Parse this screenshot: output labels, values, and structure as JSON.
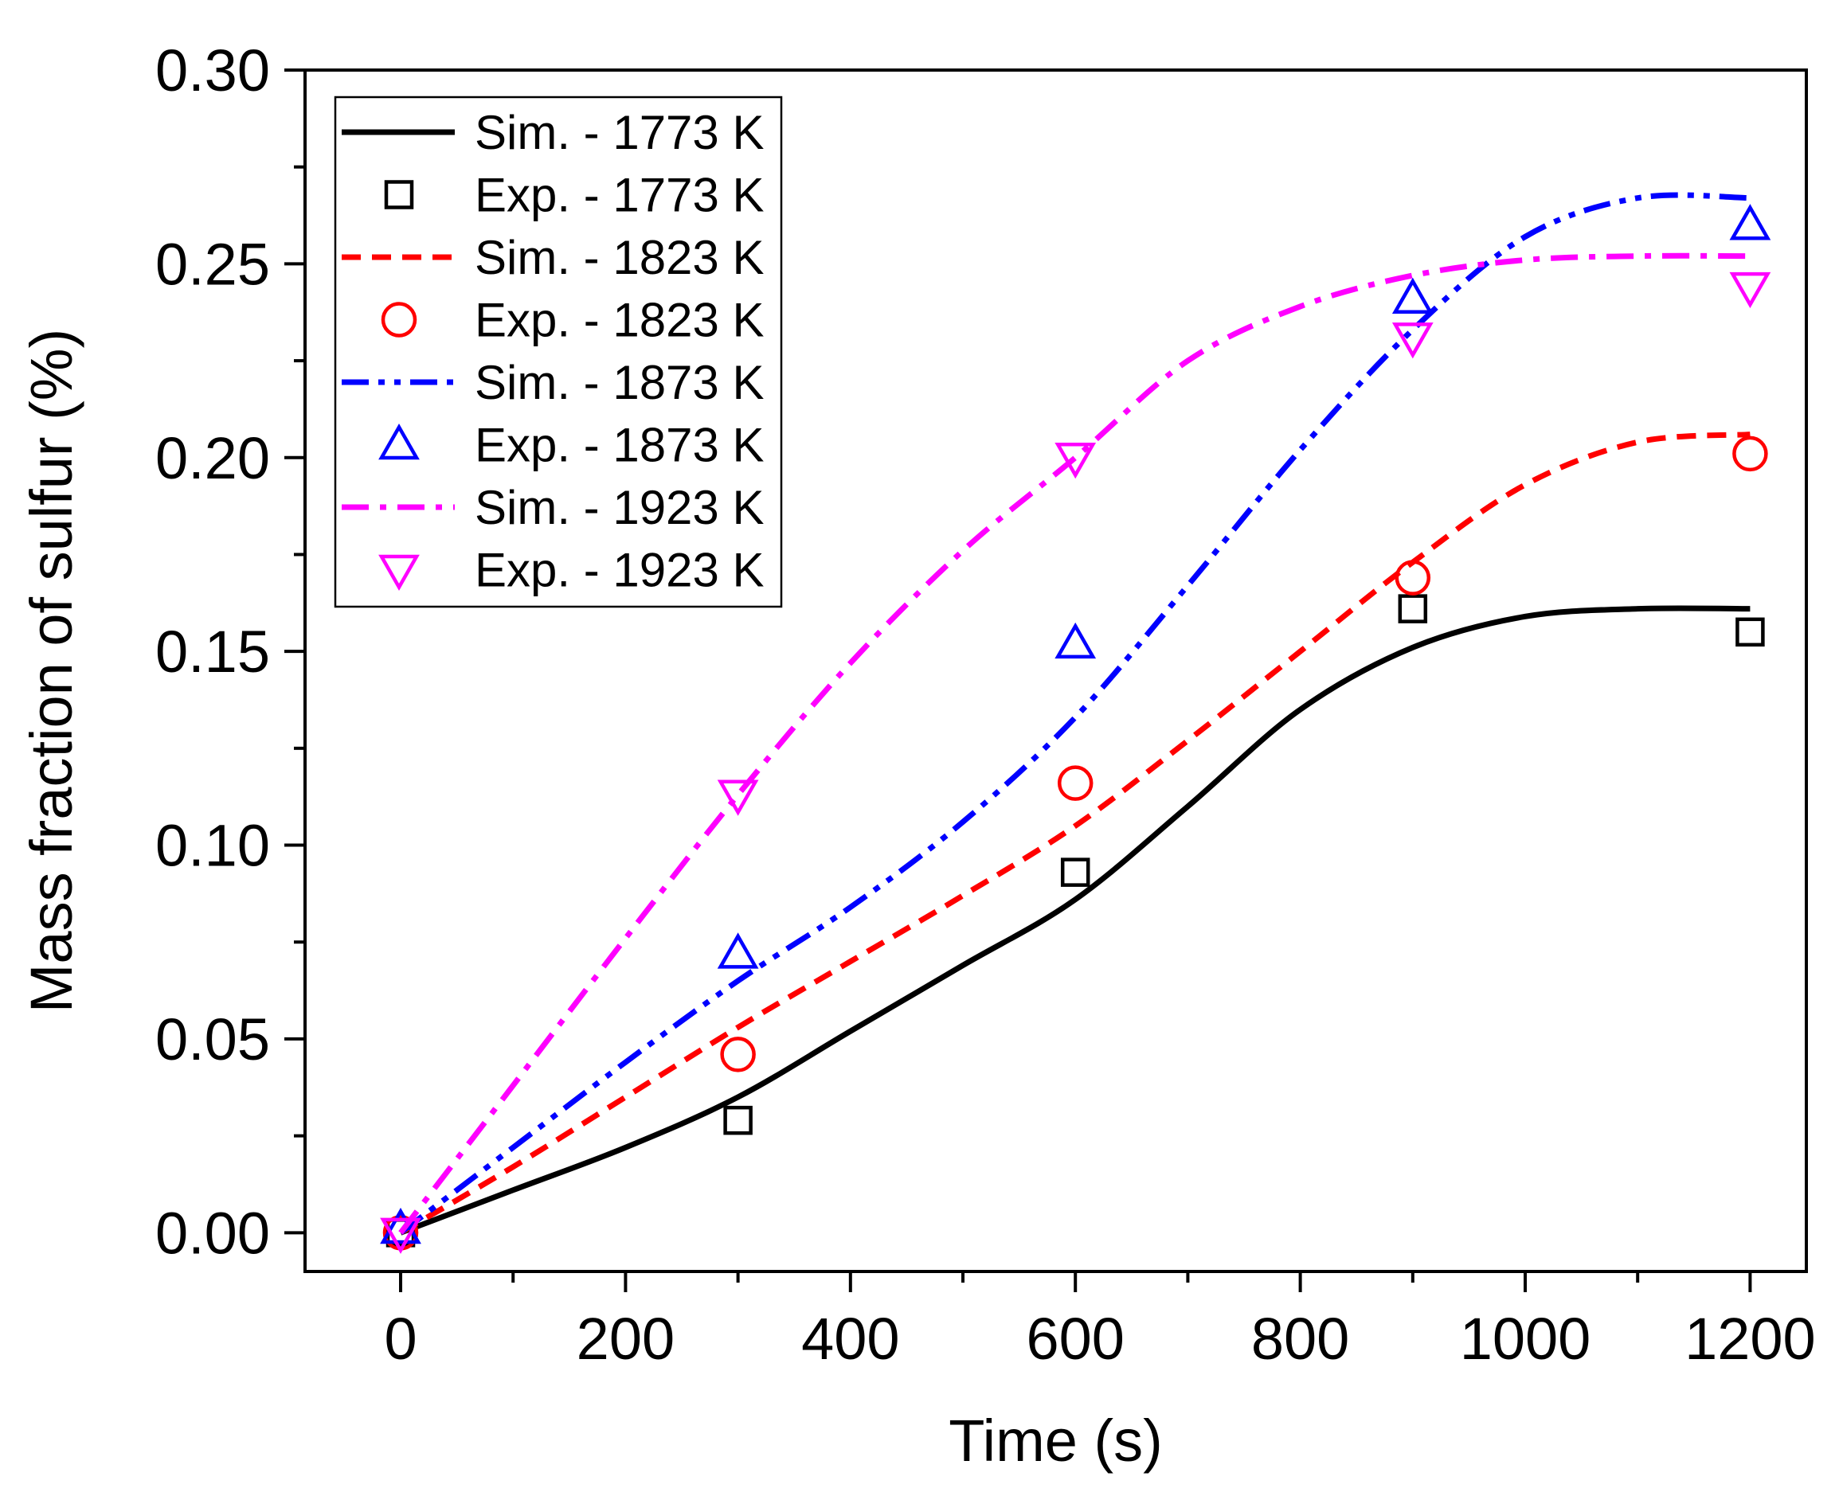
{
  "chart_data": {
    "type": "line",
    "title": "",
    "xlabel": "Time (s)",
    "ylabel": "Mass fraction of sulfur (%)",
    "xlim": [
      -85,
      1250
    ],
    "ylim": [
      -0.01,
      0.3
    ],
    "xticks": [
      0,
      200,
      400,
      600,
      800,
      1000,
      1200
    ],
    "xtick_labels": [
      "0",
      "200",
      "400",
      "600",
      "800",
      "1000",
      "1200"
    ],
    "yticks": [
      0.0,
      0.05,
      0.1,
      0.15,
      0.2,
      0.25,
      0.3
    ],
    "ytick_labels": [
      "0.00",
      "0.05",
      "0.10",
      "0.15",
      "0.20",
      "0.25",
      "0.30"
    ],
    "legend_position": "top-left",
    "grid": false,
    "series": [
      {
        "name": "Sim. - 1773 K",
        "kind": "line",
        "style": "solid",
        "color": "#000000",
        "x": [
          0,
          100,
          200,
          300,
          400,
          500,
          600,
          700,
          800,
          900,
          1000,
          1100,
          1200
        ],
        "y": [
          0.0,
          0.011,
          0.022,
          0.035,
          0.052,
          0.069,
          0.086,
          0.11,
          0.135,
          0.151,
          0.159,
          0.161,
          0.161
        ]
      },
      {
        "name": "Exp. - 1773 K",
        "kind": "marker",
        "marker": "square",
        "color": "#000000",
        "x": [
          0,
          300,
          600,
          900,
          1200
        ],
        "y": [
          0.0,
          0.029,
          0.093,
          0.161,
          0.155
        ]
      },
      {
        "name": "Sim. - 1823 K",
        "kind": "line",
        "style": "dash",
        "color": "#ff0000",
        "x": [
          0,
          100,
          200,
          300,
          400,
          500,
          600,
          700,
          800,
          900,
          1000,
          1100,
          1200
        ],
        "y": [
          0.0,
          0.017,
          0.035,
          0.053,
          0.07,
          0.087,
          0.105,
          0.127,
          0.15,
          0.173,
          0.193,
          0.204,
          0.206
        ]
      },
      {
        "name": "Exp. - 1823 K",
        "kind": "marker",
        "marker": "circle",
        "color": "#ff0000",
        "x": [
          0,
          300,
          600,
          900,
          1200
        ],
        "y": [
          0.0,
          0.046,
          0.116,
          0.169,
          0.201
        ]
      },
      {
        "name": "Sim. - 1873 K",
        "kind": "line",
        "style": "dashdotdot",
        "color": "#0000ff",
        "x": [
          0,
          100,
          200,
          300,
          400,
          500,
          600,
          700,
          800,
          900,
          1000,
          1100,
          1200
        ],
        "y": [
          0.0,
          0.022,
          0.044,
          0.065,
          0.084,
          0.106,
          0.133,
          0.167,
          0.202,
          0.233,
          0.257,
          0.267,
          0.267
        ]
      },
      {
        "name": "Exp. - 1873 K",
        "kind": "marker",
        "marker": "triangle-up",
        "color": "#0000ff",
        "x": [
          0,
          300,
          600,
          900,
          1200
        ],
        "y": [
          0.001,
          0.072,
          0.152,
          0.241,
          0.26
        ]
      },
      {
        "name": "Sim. - 1923 K",
        "kind": "line",
        "style": "dashdot",
        "color": "#ff00ff",
        "x": [
          0,
          100,
          200,
          300,
          400,
          500,
          600,
          700,
          800,
          900,
          1000,
          1100,
          1200
        ],
        "y": [
          0.0,
          0.038,
          0.076,
          0.113,
          0.147,
          0.176,
          0.2,
          0.225,
          0.239,
          0.247,
          0.251,
          0.252,
          0.252
        ]
      },
      {
        "name": "Exp. - 1923 K",
        "kind": "marker",
        "marker": "triangle-down",
        "color": "#ff00ff",
        "x": [
          0,
          300,
          600,
          900,
          1200
        ],
        "y": [
          0.0,
          0.113,
          0.2,
          0.231,
          0.244
        ]
      }
    ]
  }
}
